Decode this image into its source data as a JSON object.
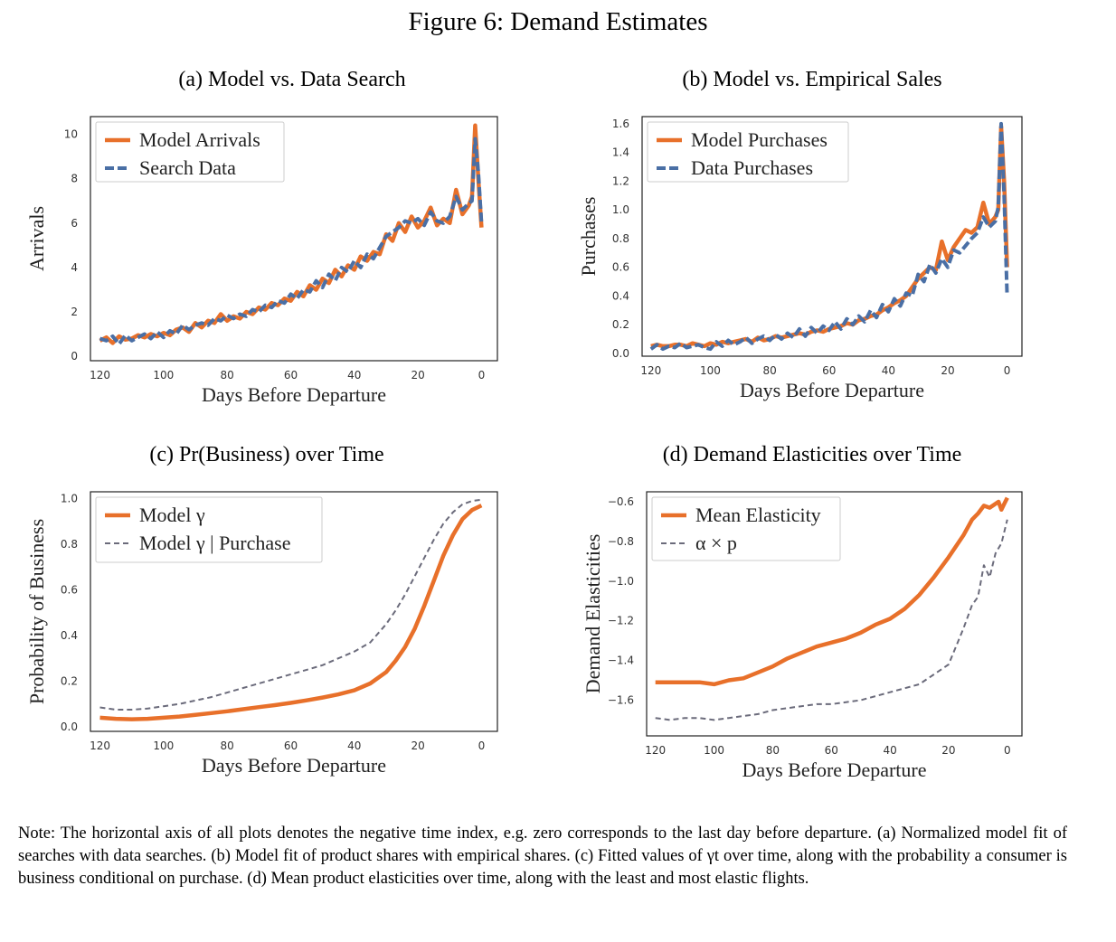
{
  "figure_title": "Figure 6: Demand Estimates",
  "note": "Note: The horizontal axis of all plots denotes the negative time index, e.g. zero corresponds to the last day before departure. (a) Normalized model fit of searches with data searches. (b) Model fit of product shares with empirical shares. (c) Fitted values of γt over time, along with the probability a consumer is business conditional on purchase. (d) Mean product elasticities over time, along with the least and most elastic flights.",
  "colors": {
    "orange": "#E8702A",
    "blue": "#4A6FA5",
    "gray": "#6B6B7B"
  },
  "chart_data": [
    {
      "id": "a",
      "type": "line",
      "title": "(a) Model vs. Data Search",
      "xlabel": "Days Before Departure",
      "ylabel": "Arrivals",
      "xlim": [
        123,
        -5
      ],
      "ylim": [
        -0.2,
        10.8
      ],
      "xticks": [
        120,
        100,
        80,
        60,
        40,
        20,
        0
      ],
      "yticks": [
        0,
        2,
        4,
        6,
        8,
        10
      ],
      "legend_position": "top-left",
      "grid": false,
      "series": [
        {
          "name": "Model Arrivals",
          "style": "solid",
          "color": "#E8702A",
          "x": [
            120,
            118,
            116,
            114,
            112,
            110,
            108,
            106,
            104,
            102,
            100,
            98,
            96,
            94,
            92,
            90,
            88,
            86,
            84,
            82,
            80,
            78,
            76,
            74,
            72,
            70,
            68,
            66,
            64,
            62,
            60,
            58,
            56,
            54,
            52,
            50,
            48,
            46,
            44,
            42,
            40,
            38,
            36,
            34,
            32,
            30,
            28,
            26,
            24,
            22,
            20,
            18,
            16,
            14,
            12,
            10,
            8,
            6,
            4,
            3,
            2,
            1,
            0
          ],
          "y": [
            0.7,
            0.85,
            0.6,
            0.9,
            0.75,
            0.8,
            0.95,
            0.85,
            1.0,
            0.9,
            1.05,
            0.95,
            1.2,
            1.3,
            1.1,
            1.5,
            1.3,
            1.6,
            1.5,
            1.9,
            1.6,
            1.8,
            1.7,
            2.0,
            1.9,
            2.2,
            2.1,
            2.4,
            2.3,
            2.6,
            2.5,
            2.9,
            2.7,
            3.2,
            3.0,
            3.5,
            3.3,
            3.9,
            3.6,
            4.1,
            3.9,
            4.5,
            4.3,
            4.7,
            4.6,
            5.5,
            5.2,
            6.0,
            5.6,
            6.3,
            5.8,
            6.1,
            6.7,
            5.9,
            6.2,
            6.0,
            7.5,
            6.4,
            6.8,
            7.2,
            10.4,
            8.0,
            5.8
          ]
        },
        {
          "name": "Search Data",
          "style": "dashed",
          "color": "#4A6FA5",
          "x": [
            120,
            118,
            116,
            114,
            112,
            110,
            108,
            106,
            104,
            102,
            100,
            98,
            96,
            94,
            92,
            90,
            88,
            86,
            84,
            82,
            80,
            78,
            76,
            74,
            72,
            70,
            68,
            66,
            64,
            62,
            60,
            58,
            56,
            54,
            52,
            50,
            48,
            46,
            44,
            42,
            40,
            38,
            36,
            34,
            32,
            30,
            28,
            26,
            24,
            22,
            20,
            18,
            16,
            14,
            12,
            10,
            8,
            6,
            4,
            3,
            2,
            1,
            0
          ],
          "y": [
            0.8,
            0.7,
            0.9,
            0.55,
            0.95,
            0.7,
            0.85,
            1.0,
            0.8,
            1.1,
            0.85,
            1.15,
            1.0,
            1.4,
            1.2,
            1.4,
            1.5,
            1.4,
            1.7,
            1.6,
            1.85,
            1.7,
            1.9,
            1.8,
            2.1,
            2.0,
            2.3,
            2.2,
            2.5,
            2.4,
            2.8,
            2.6,
            3.0,
            2.9,
            3.4,
            3.1,
            3.7,
            3.4,
            4.0,
            3.8,
            4.3,
            4.0,
            4.6,
            4.4,
            4.9,
            5.4,
            5.6,
            5.8,
            6.1,
            6.0,
            6.2,
            5.9,
            6.5,
            6.1,
            6.0,
            6.3,
            7.2,
            6.6,
            6.9,
            7.0,
            9.8,
            8.3,
            6.0
          ]
        }
      ]
    },
    {
      "id": "b",
      "type": "line",
      "title": "(b) Model vs. Empirical Sales",
      "xlabel": "Days Before Departure",
      "ylabel": "Purchases",
      "xlim": [
        123,
        -5
      ],
      "ylim": [
        -0.02,
        1.65
      ],
      "xticks": [
        120,
        100,
        80,
        60,
        40,
        20,
        0
      ],
      "yticks": [
        0.0,
        0.2,
        0.4,
        0.6,
        0.8,
        1.0,
        1.2,
        1.4,
        1.6
      ],
      "legend_position": "top-left",
      "grid": false,
      "series": [
        {
          "name": "Model Purchases",
          "style": "solid",
          "color": "#E8702A",
          "x": [
            120,
            118,
            116,
            114,
            112,
            110,
            108,
            106,
            104,
            102,
            100,
            98,
            96,
            94,
            92,
            90,
            88,
            86,
            84,
            82,
            80,
            78,
            76,
            74,
            72,
            70,
            68,
            66,
            64,
            62,
            60,
            58,
            56,
            54,
            52,
            50,
            48,
            46,
            44,
            42,
            40,
            38,
            36,
            34,
            32,
            30,
            28,
            26,
            24,
            22,
            20,
            18,
            16,
            14,
            12,
            10,
            8,
            6,
            4,
            3,
            2,
            1,
            0
          ],
          "y": [
            0.05,
            0.06,
            0.05,
            0.05,
            0.06,
            0.06,
            0.05,
            0.07,
            0.06,
            0.05,
            0.07,
            0.06,
            0.08,
            0.07,
            0.08,
            0.09,
            0.1,
            0.08,
            0.11,
            0.09,
            0.1,
            0.12,
            0.11,
            0.12,
            0.13,
            0.14,
            0.13,
            0.15,
            0.16,
            0.15,
            0.17,
            0.18,
            0.19,
            0.21,
            0.2,
            0.23,
            0.24,
            0.26,
            0.27,
            0.3,
            0.32,
            0.35,
            0.37,
            0.4,
            0.46,
            0.52,
            0.56,
            0.6,
            0.58,
            0.78,
            0.65,
            0.74,
            0.8,
            0.86,
            0.84,
            0.88,
            1.05,
            0.9,
            0.95,
            1.0,
            1.58,
            1.2,
            0.6
          ]
        },
        {
          "name": "Data Purchases",
          "style": "dashed",
          "color": "#4A6FA5",
          "x": [
            120,
            118,
            116,
            114,
            112,
            110,
            108,
            106,
            104,
            102,
            100,
            98,
            96,
            94,
            92,
            90,
            88,
            86,
            84,
            82,
            80,
            78,
            76,
            74,
            72,
            70,
            68,
            66,
            64,
            62,
            60,
            58,
            56,
            54,
            52,
            50,
            48,
            46,
            44,
            42,
            40,
            38,
            36,
            34,
            32,
            30,
            28,
            26,
            24,
            22,
            20,
            18,
            16,
            14,
            12,
            10,
            8,
            6,
            4,
            3,
            2,
            1,
            0
          ],
          "y": [
            0.03,
            0.06,
            0.03,
            0.05,
            0.04,
            0.07,
            0.04,
            0.05,
            0.06,
            0.04,
            0.03,
            0.08,
            0.05,
            0.09,
            0.06,
            0.08,
            0.11,
            0.07,
            0.1,
            0.12,
            0.09,
            0.13,
            0.1,
            0.14,
            0.11,
            0.17,
            0.12,
            0.18,
            0.14,
            0.19,
            0.16,
            0.22,
            0.17,
            0.24,
            0.2,
            0.26,
            0.22,
            0.3,
            0.25,
            0.34,
            0.29,
            0.38,
            0.33,
            0.42,
            0.4,
            0.55,
            0.5,
            0.62,
            0.56,
            0.66,
            0.6,
            0.72,
            0.7,
            0.75,
            0.8,
            0.84,
            0.95,
            0.88,
            0.92,
            1.02,
            1.6,
            1.1,
            0.4
          ]
        }
      ]
    },
    {
      "id": "c",
      "type": "line",
      "title": "(c) Pr(Business) over Time",
      "xlabel": "Days Before Departure",
      "ylabel": "Probability of Business",
      "xlim": [
        123,
        -5
      ],
      "ylim": [
        -0.02,
        1.03
      ],
      "xticks": [
        120,
        100,
        80,
        60,
        40,
        20,
        0
      ],
      "yticks": [
        0.0,
        0.2,
        0.4,
        0.6,
        0.8,
        1.0
      ],
      "legend_position": "top-left",
      "grid": false,
      "series": [
        {
          "name": "Model γ",
          "style": "solid",
          "color": "#E8702A",
          "x": [
            120,
            115,
            110,
            105,
            100,
            95,
            90,
            85,
            80,
            75,
            70,
            65,
            60,
            55,
            50,
            45,
            40,
            35,
            30,
            27,
            24,
            21,
            18,
            15,
            12,
            9,
            6,
            3,
            0
          ],
          "y": [
            0.04,
            0.035,
            0.033,
            0.035,
            0.04,
            0.045,
            0.052,
            0.06,
            0.068,
            0.077,
            0.086,
            0.095,
            0.105,
            0.116,
            0.128,
            0.142,
            0.16,
            0.19,
            0.24,
            0.29,
            0.35,
            0.43,
            0.53,
            0.64,
            0.75,
            0.84,
            0.91,
            0.95,
            0.97
          ]
        },
        {
          "name": "Model γ | Purchase",
          "style": "dashed",
          "color": "#6B6B7B",
          "x": [
            120,
            115,
            110,
            105,
            100,
            95,
            90,
            85,
            80,
            75,
            70,
            65,
            60,
            55,
            50,
            45,
            40,
            35,
            30,
            27,
            24,
            21,
            18,
            15,
            12,
            9,
            6,
            3,
            0
          ],
          "y": [
            0.085,
            0.075,
            0.075,
            0.08,
            0.09,
            0.1,
            0.115,
            0.13,
            0.15,
            0.17,
            0.19,
            0.21,
            0.23,
            0.25,
            0.27,
            0.3,
            0.33,
            0.37,
            0.45,
            0.51,
            0.58,
            0.66,
            0.74,
            0.82,
            0.89,
            0.94,
            0.975,
            0.99,
            0.995
          ]
        }
      ]
    },
    {
      "id": "d",
      "type": "line",
      "title": "(d) Demand Elasticities over Time",
      "xlabel": "Days Before Departure",
      "ylabel": "Demand Elasticities",
      "xlim": [
        123,
        -5
      ],
      "ylim": [
        -1.78,
        -0.55
      ],
      "xticks": [
        120,
        100,
        80,
        60,
        40,
        20,
        0
      ],
      "yticks": [
        -0.6,
        -0.8,
        -1.0,
        -1.2,
        -1.4,
        -1.6
      ],
      "legend_position": "top-left",
      "grid": false,
      "series": [
        {
          "name": "Mean Elasticity",
          "style": "solid",
          "color": "#E8702A",
          "x": [
            120,
            115,
            110,
            105,
            100,
            95,
            90,
            85,
            80,
            75,
            70,
            65,
            60,
            55,
            50,
            45,
            40,
            35,
            30,
            25,
            20,
            15,
            12,
            10,
            8,
            6,
            4,
            3,
            2,
            1,
            0
          ],
          "y": [
            -1.51,
            -1.51,
            -1.51,
            -1.51,
            -1.52,
            -1.5,
            -1.49,
            -1.46,
            -1.43,
            -1.39,
            -1.36,
            -1.33,
            -1.31,
            -1.29,
            -1.26,
            -1.22,
            -1.19,
            -1.14,
            -1.07,
            -0.98,
            -0.88,
            -0.77,
            -0.69,
            -0.66,
            -0.62,
            -0.63,
            -0.61,
            -0.6,
            -0.64,
            -0.61,
            -0.58
          ]
        },
        {
          "name": "α × p",
          "style": "dashed",
          "color": "#6B6B7B",
          "x": [
            120,
            115,
            110,
            105,
            100,
            95,
            90,
            85,
            80,
            75,
            70,
            65,
            60,
            55,
            50,
            45,
            40,
            35,
            30,
            25,
            20,
            15,
            12,
            10,
            8,
            6,
            4,
            2,
            0
          ],
          "y": [
            -1.69,
            -1.7,
            -1.69,
            -1.69,
            -1.7,
            -1.69,
            -1.68,
            -1.67,
            -1.65,
            -1.64,
            -1.63,
            -1.62,
            -1.62,
            -1.61,
            -1.6,
            -1.58,
            -1.56,
            -1.54,
            -1.52,
            -1.47,
            -1.42,
            -1.24,
            -1.12,
            -1.08,
            -0.92,
            -0.98,
            -0.86,
            -0.81,
            -0.69
          ]
        }
      ]
    }
  ]
}
